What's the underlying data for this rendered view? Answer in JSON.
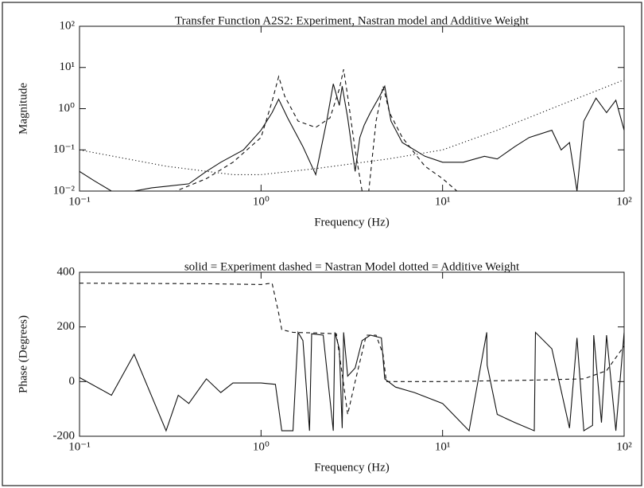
{
  "chart_data": [
    {
      "type": "line",
      "title": "Transfer Function A2S2: Experiment, Nastran model and Additive Weight",
      "x_label": "Frequency (Hz)",
      "y_label": "Magnitude",
      "x_log": true,
      "y_log": true,
      "xlim": [
        0.1,
        100
      ],
      "ylim": [
        0.01,
        100
      ],
      "xticks": [
        {
          "value": 0.1,
          "label": "10⁻¹"
        },
        {
          "value": 1,
          "label": "10⁰"
        },
        {
          "value": 10,
          "label": "10¹"
        },
        {
          "value": 100,
          "label": "10²"
        }
      ],
      "yticks": [
        {
          "value": 0.01,
          "label": "10⁻²"
        },
        {
          "value": 0.1,
          "label": "10⁻¹"
        },
        {
          "value": 1,
          "label": "10⁰"
        },
        {
          "value": 10,
          "label": "10¹"
        },
        {
          "value": 100,
          "label": "10²"
        }
      ],
      "series": [
        {
          "color": "#111111",
          "line_style": "solid",
          "x": [
            0.1,
            0.12,
            0.15,
            0.2,
            0.25,
            0.3,
            0.4,
            0.5,
            0.6,
            0.8,
            1.0,
            1.15,
            1.25,
            1.4,
            1.7,
            2.0,
            2.3,
            2.5,
            2.7,
            2.8,
            3.0,
            3.3,
            3.5,
            3.7,
            4.0,
            4.5,
            4.8,
            5.2,
            6,
            8,
            10,
            13,
            17,
            20,
            25,
            30,
            40,
            45,
            50,
            55,
            60,
            70,
            80,
            90,
            100
          ],
          "values": [
            0.03,
            0.018,
            0.01,
            0.01,
            0.012,
            0.013,
            0.015,
            0.03,
            0.05,
            0.1,
            0.3,
            0.8,
            1.7,
            0.6,
            0.12,
            0.025,
            0.5,
            4,
            1.2,
            3.5,
            0.6,
            0.03,
            0.2,
            0.4,
            0.8,
            2,
            3.5,
            0.5,
            0.15,
            0.07,
            0.05,
            0.05,
            0.07,
            0.06,
            0.12,
            0.2,
            0.3,
            0.1,
            0.15,
            0.01,
            0.5,
            1.8,
            0.8,
            1.6,
            0.3
          ]
        },
        {
          "color": "#111111",
          "line_style": "dashed",
          "x": [
            0.3,
            0.5,
            0.7,
            1.0,
            1.15,
            1.25,
            1.35,
            1.6,
            2.0,
            2.4,
            2.7,
            2.85,
            3.0,
            3.3,
            3.6,
            3.9,
            4.3,
            4.7,
            5.1,
            6,
            8,
            10,
            12
          ],
          "values": [
            0.008,
            0.02,
            0.05,
            0.2,
            1.5,
            6,
            2,
            0.5,
            0.35,
            0.6,
            3,
            9,
            2,
            0.1,
            0.01,
            0.008,
            0.5,
            3.5,
            0.8,
            0.2,
            0.04,
            0.02,
            0.01
          ]
        },
        {
          "color": "#111111",
          "line_style": "dotted",
          "x": [
            0.1,
            0.3,
            0.7,
            1,
            2,
            5,
            10,
            20,
            50,
            100
          ],
          "values": [
            0.1,
            0.04,
            0.025,
            0.025,
            0.035,
            0.06,
            0.1,
            0.3,
            1.5,
            5
          ]
        }
      ]
    },
    {
      "type": "line",
      "title": "solid = Experiment     dashed = Nastran Model     dotted = Additive Weight",
      "x_label": "Frequency (Hz)",
      "y_label": "Phase  (Degrees)",
      "x_log": true,
      "y_log": false,
      "xlim": [
        0.1,
        100
      ],
      "ylim": [
        -200,
        400
      ],
      "xticks": [
        {
          "value": 0.1,
          "label": "10⁻¹"
        },
        {
          "value": 1,
          "label": "10⁰"
        },
        {
          "value": 10,
          "label": "10¹"
        },
        {
          "value": 100,
          "label": "10²"
        }
      ],
      "yticks": [
        -200,
        0,
        200,
        400
      ],
      "series": [
        {
          "color": "#111111",
          "line_style": "solid",
          "x": [
            0.1,
            0.15,
            0.2,
            0.3,
            0.35,
            0.4,
            0.5,
            0.6,
            0.7,
            0.8,
            1.0,
            1.2,
            1.3,
            1.5,
            1.6,
            1.7,
            1.85,
            1.9,
            2.2,
            2.5,
            2.55,
            2.7,
            2.8,
            2.85,
            3.0,
            3.3,
            3.6,
            4.0,
            4.6,
            4.8,
            5.5,
            7,
            10,
            14,
            17.5,
            17.6,
            20,
            25,
            32,
            32.5,
            40,
            50,
            55,
            60,
            67,
            68,
            75,
            80,
            90,
            100
          ],
          "values": [
            15,
            -50,
            100,
            -180,
            -50,
            -80,
            10,
            -40,
            -5,
            -5,
            -5,
            -10,
            -180,
            -180,
            180,
            150,
            -180,
            175,
            170,
            -180,
            180,
            120,
            -170,
            180,
            20,
            50,
            150,
            170,
            160,
            10,
            -20,
            -40,
            -80,
            -180,
            180,
            60,
            -120,
            -150,
            -180,
            180,
            120,
            -170,
            160,
            -180,
            -160,
            170,
            -150,
            170,
            -180,
            180
          ]
        },
        {
          "color": "#111111",
          "line_style": "dashed",
          "x": [
            0.1,
            0.5,
            1.0,
            1.15,
            1.25,
            1.3,
            1.5,
            2.0,
            2.6,
            2.7,
            2.85,
            3.0,
            3.3,
            3.8,
            4.3,
            4.7,
            4.9,
            6,
            10,
            30,
            60,
            80,
            100
          ],
          "values": [
            360,
            358,
            355,
            360,
            250,
            190,
            180,
            178,
            175,
            100,
            -10,
            -120,
            0,
            170,
            170,
            100,
            0,
            0,
            0,
            5,
            10,
            40,
            130
          ]
        }
      ]
    }
  ]
}
